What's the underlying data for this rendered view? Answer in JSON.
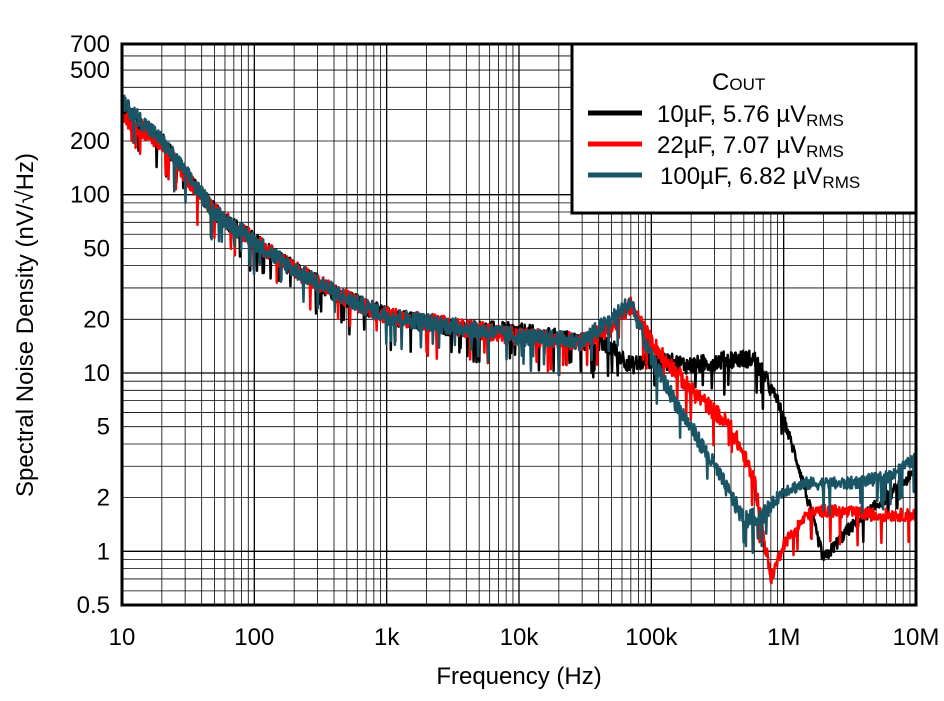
{
  "chart_data": {
    "type": "line",
    "xlabel": "Frequency (Hz)",
    "ylabel": "Spectral Noise Density (nV/√Hz)",
    "x_scale": "log",
    "y_scale": "log",
    "xlim": [
      10,
      10000000
    ],
    "ylim": [
      0.5,
      700
    ],
    "grid": true,
    "x_ticks": [
      {
        "v": 10,
        "label": "10"
      },
      {
        "v": 100,
        "label": "100"
      },
      {
        "v": 1000,
        "label": "1k"
      },
      {
        "v": 10000,
        "label": "10k"
      },
      {
        "v": 100000,
        "label": "100k"
      },
      {
        "v": 1000000,
        "label": "1M"
      },
      {
        "v": 10000000,
        "label": "10M"
      }
    ],
    "y_ticks": [
      {
        "v": 0.5,
        "label": "0.5"
      },
      {
        "v": 1,
        "label": "1"
      },
      {
        "v": 2,
        "label": "2"
      },
      {
        "v": 5,
        "label": "5"
      },
      {
        "v": 10,
        "label": "10"
      },
      {
        "v": 20,
        "label": "20"
      },
      {
        "v": 50,
        "label": "50"
      },
      {
        "v": 100,
        "label": "100"
      },
      {
        "v": 200,
        "label": "200"
      },
      {
        "v": 500,
        "label": "500"
      },
      {
        "v": 700,
        "label": "700"
      }
    ],
    "legend": {
      "title_main": "C",
      "title_sub": "OUT",
      "placement": "top-right",
      "entries": [
        {
          "text": "10µF, 5.76 µV",
          "sub": "RMS"
        },
        {
          "text": "22µF, 7.07 µV",
          "sub": "RMS"
        },
        {
          "text": "100µF, 6.82 µV",
          "sub": "RMS"
        }
      ]
    },
    "series": [
      {
        "name": "10µF, 5.76 µVRMS",
        "color": "#000000",
        "points": [
          [
            10,
            300
          ],
          [
            20,
            200
          ],
          [
            50,
            80
          ],
          [
            100,
            55
          ],
          [
            200,
            38
          ],
          [
            500,
            26
          ],
          [
            1000,
            21
          ],
          [
            3000,
            18
          ],
          [
            10000,
            17
          ],
          [
            30000,
            15
          ],
          [
            50000,
            14
          ],
          [
            70000,
            11
          ],
          [
            100000,
            12
          ],
          [
            200000,
            11
          ],
          [
            400000,
            12
          ],
          [
            600000,
            12
          ],
          [
            900000,
            7
          ],
          [
            1300000,
            3
          ],
          [
            2000000,
            0.9
          ],
          [
            3000000,
            1.3
          ],
          [
            5000000,
            1.8
          ],
          [
            10000000,
            2.8
          ]
        ]
      },
      {
        "name": "22µF, 7.07 µVRMS",
        "color": "#ff0000",
        "points": [
          [
            10,
            280
          ],
          [
            20,
            190
          ],
          [
            50,
            80
          ],
          [
            100,
            55
          ],
          [
            200,
            38
          ],
          [
            500,
            26
          ],
          [
            1000,
            21
          ],
          [
            10000,
            16
          ],
          [
            30000,
            15
          ],
          [
            50000,
            18
          ],
          [
            70000,
            24
          ],
          [
            100000,
            15
          ],
          [
            200000,
            8
          ],
          [
            400000,
            5
          ],
          [
            600000,
            2.5
          ],
          [
            800000,
            0.7
          ],
          [
            1000000,
            1.1
          ],
          [
            1500000,
            1.6
          ],
          [
            2000000,
            1.7
          ],
          [
            5000000,
            1.6
          ],
          [
            10000000,
            1.6
          ]
        ]
      },
      {
        "name": "100µF, 6.82 µVRMS",
        "color": "#1a5566",
        "points": [
          [
            10,
            330
          ],
          [
            20,
            200
          ],
          [
            50,
            80
          ],
          [
            100,
            55
          ],
          [
            200,
            38
          ],
          [
            500,
            26
          ],
          [
            1000,
            21
          ],
          [
            10000,
            16
          ],
          [
            30000,
            15
          ],
          [
            50000,
            20
          ],
          [
            70000,
            25
          ],
          [
            100000,
            12
          ],
          [
            150000,
            7
          ],
          [
            300000,
            3
          ],
          [
            500000,
            1.5
          ],
          [
            700000,
            1.6
          ],
          [
            1000000,
            2.2
          ],
          [
            1500000,
            2.4
          ],
          [
            3000000,
            2.4
          ],
          [
            6000000,
            2.6
          ],
          [
            10000000,
            3.3
          ]
        ]
      }
    ]
  }
}
